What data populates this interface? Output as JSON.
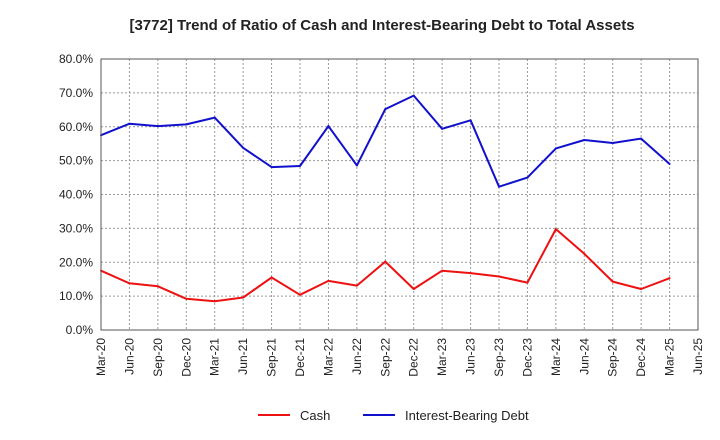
{
  "chart_data": {
    "type": "line",
    "title": "[3772]  Trend of Ratio of Cash and Interest-Bearing Debt to Total Assets",
    "xlabel": "",
    "ylabel": "",
    "ylim": [
      0,
      80
    ],
    "y_ticks": [
      "0.0%",
      "10.0%",
      "20.0%",
      "30.0%",
      "40.0%",
      "50.0%",
      "60.0%",
      "70.0%",
      "80.0%"
    ],
    "x_ticks": [
      "Mar-20",
      "Jun-20",
      "Sep-20",
      "Dec-20",
      "Mar-21",
      "Jun-21",
      "Sep-21",
      "Dec-21",
      "Mar-22",
      "Jun-22",
      "Sep-22",
      "Dec-22",
      "Mar-23",
      "Jun-23",
      "Sep-23",
      "Dec-23",
      "Mar-24",
      "Jun-24",
      "Sep-24",
      "Dec-24",
      "Mar-25",
      "Jun-25"
    ],
    "categories": [
      "Mar-20",
      "Jun-20",
      "Sep-20",
      "Dec-20",
      "Mar-21",
      "Jun-21",
      "Sep-21",
      "Dec-21",
      "Mar-22",
      "Jun-22",
      "Sep-22",
      "Dec-22",
      "Mar-23",
      "Jun-23",
      "Sep-23",
      "Dec-23",
      "Mar-24",
      "Jun-24",
      "Sep-24",
      "Dec-24",
      "Mar-25"
    ],
    "grid": true,
    "legend_position": "bottom-center",
    "series": [
      {
        "name": "Cash",
        "color": "#ee1111",
        "values": [
          17.5,
          13.8,
          12.9,
          9.2,
          8.5,
          9.6,
          15.5,
          10.4,
          14.5,
          13.1,
          20.2,
          12.1,
          17.5,
          16.8,
          15.8,
          14.0,
          29.8,
          22.5,
          14.3,
          12.1,
          15.3
        ]
      },
      {
        "name": "Interest-Bearing Debt",
        "color": "#1111cc",
        "values": [
          57.5,
          60.9,
          60.2,
          60.7,
          62.7,
          53.8,
          48.1,
          48.4,
          60.2,
          48.6,
          65.2,
          69.2,
          59.4,
          61.9,
          42.3,
          45.0,
          53.6,
          56.1,
          55.2,
          56.5,
          49.0
        ]
      }
    ]
  }
}
